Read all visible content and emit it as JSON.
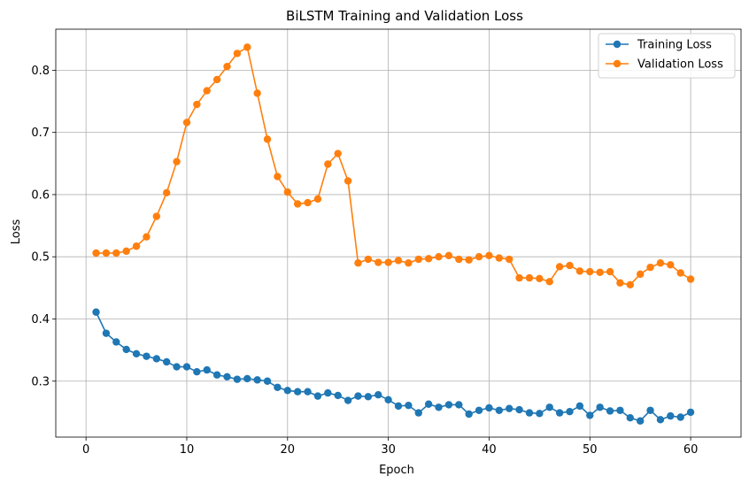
{
  "chart_data": {
    "type": "line",
    "title": "BiLSTM Training and Validation Loss",
    "xlabel": "Epoch",
    "ylabel": "Loss",
    "xlim": [
      -3,
      65
    ],
    "ylim": [
      0.21,
      0.866
    ],
    "xticks": [
      0,
      10,
      20,
      30,
      40,
      50,
      60
    ],
    "yticks": [
      0.3,
      0.4,
      0.5,
      0.6,
      0.7,
      0.8
    ],
    "ytick_labels": [
      "0.3",
      "0.4",
      "0.5",
      "0.6",
      "0.7",
      "0.8"
    ],
    "grid": true,
    "legend_position": "top-right",
    "x": [
      1,
      2,
      3,
      4,
      5,
      6,
      7,
      8,
      9,
      10,
      11,
      12,
      13,
      14,
      15,
      16,
      17,
      18,
      19,
      20,
      21,
      22,
      23,
      24,
      25,
      26,
      27,
      28,
      29,
      30,
      31,
      32,
      33,
      34,
      35,
      36,
      37,
      38,
      39,
      40,
      41,
      42,
      43,
      44,
      45,
      46,
      47,
      48,
      49,
      50,
      51,
      52,
      53,
      54,
      55,
      56,
      57,
      58,
      59,
      60
    ],
    "series": [
      {
        "name": "Training Loss",
        "color": "#1f77b4",
        "values": [
          0.411,
          0.377,
          0.363,
          0.351,
          0.344,
          0.34,
          0.336,
          0.331,
          0.323,
          0.323,
          0.315,
          0.318,
          0.31,
          0.307,
          0.303,
          0.304,
          0.302,
          0.3,
          0.29,
          0.285,
          0.283,
          0.283,
          0.276,
          0.281,
          0.277,
          0.269,
          0.276,
          0.275,
          0.278,
          0.27,
          0.26,
          0.261,
          0.249,
          0.263,
          0.258,
          0.262,
          0.262,
          0.247,
          0.253,
          0.257,
          0.253,
          0.256,
          0.254,
          0.249,
          0.248,
          0.258,
          0.249,
          0.251,
          0.26,
          0.245,
          0.258,
          0.252,
          0.253,
          0.241,
          0.236,
          0.253,
          0.238,
          0.244,
          0.242,
          0.25
        ]
      },
      {
        "name": "Validation Loss",
        "color": "#ff7f0e",
        "values": [
          0.506,
          0.506,
          0.506,
          0.509,
          0.517,
          0.532,
          0.565,
          0.603,
          0.653,
          0.716,
          0.745,
          0.767,
          0.785,
          0.806,
          0.827,
          0.837,
          0.763,
          0.689,
          0.629,
          0.604,
          0.585,
          0.587,
          0.593,
          0.649,
          0.666,
          0.622,
          0.49,
          0.496,
          0.491,
          0.491,
          0.494,
          0.49,
          0.496,
          0.497,
          0.5,
          0.502,
          0.496,
          0.495,
          0.5,
          0.502,
          0.498,
          0.496,
          0.466,
          0.466,
          0.465,
          0.46,
          0.484,
          0.486,
          0.477,
          0.476,
          0.475,
          0.476,
          0.458,
          0.455,
          0.472,
          0.483,
          0.49,
          0.487,
          0.474,
          0.464
        ]
      }
    ]
  }
}
